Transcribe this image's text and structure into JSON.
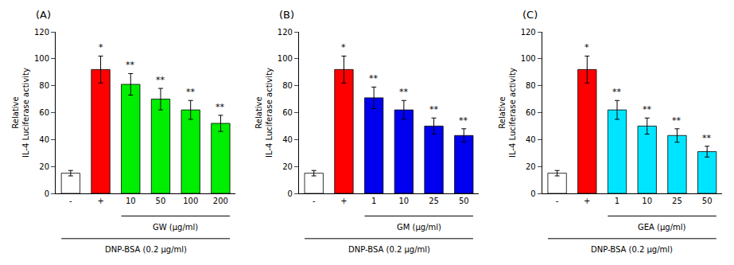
{
  "chart_data": [
    {
      "type": "bar",
      "title": "(A)",
      "categories": [
        "-",
        "+",
        "10",
        "50",
        "100",
        "200"
      ],
      "values": [
        15,
        92,
        81,
        70,
        62,
        52
      ],
      "errors": [
        2,
        10,
        8,
        8,
        7,
        6
      ],
      "colors": [
        "#ffffff",
        "#ff0000",
        "#00ee00",
        "#00ee00",
        "#00ee00",
        "#00ee00"
      ],
      "significance": [
        null,
        "*",
        "**",
        "**",
        "**",
        "**"
      ],
      "brackets": [
        {
          "text": "GW (μg/ml)",
          "from": "10",
          "to": "200"
        },
        {
          "text": "DNP-BSA (0.2 μg/ml)",
          "from": "-",
          "to": "200"
        }
      ],
      "ylabel": "Relative\nIL-4 Luciferase activity",
      "ylim": [
        0,
        120
      ],
      "yticks": [
        0,
        20,
        40,
        60,
        80,
        100,
        120
      ],
      "grid": false
    },
    {
      "type": "bar",
      "title": "(B)",
      "categories": [
        "-",
        "+",
        "1",
        "10",
        "25",
        "50"
      ],
      "values": [
        15,
        92,
        71,
        62,
        50,
        43
      ],
      "errors": [
        2,
        10,
        8,
        7,
        6,
        5
      ],
      "colors": [
        "#ffffff",
        "#ff0000",
        "#0000ee",
        "#0000ee",
        "#0000ee",
        "#0000ee"
      ],
      "significance": [
        null,
        "*",
        "**",
        "**",
        "**",
        "**"
      ],
      "brackets": [
        {
          "text": "GM (μg/ml)",
          "from": "1",
          "to": "50"
        },
        {
          "text": "DNP-BSA (0.2 μg/ml)",
          "from": "-",
          "to": "50"
        }
      ],
      "ylabel": "Relative\nIL-4 Luciferase activity",
      "ylim": [
        0,
        120
      ],
      "yticks": [
        0,
        20,
        40,
        60,
        80,
        100,
        120
      ],
      "grid": false
    },
    {
      "type": "bar",
      "title": "(C)",
      "categories": [
        "-",
        "+",
        "1",
        "10",
        "25",
        "50"
      ],
      "values": [
        15,
        92,
        62,
        50,
        43,
        31
      ],
      "errors": [
        2,
        10,
        7,
        6,
        5,
        4
      ],
      "colors": [
        "#ffffff",
        "#ff0000",
        "#00e5ff",
        "#00e5ff",
        "#00e5ff",
        "#00e5ff"
      ],
      "significance": [
        null,
        "*",
        "**",
        "**",
        "**",
        "**"
      ],
      "brackets": [
        {
          "text": "GEA (μg/ml)",
          "from": "1",
          "to": "50"
        },
        {
          "text": "DNP-BSA (0.2 μg/ml)",
          "from": "-",
          "to": "50"
        }
      ],
      "ylabel": "Relative\nIL-4 Luciferase activity",
      "ylim": [
        0,
        120
      ],
      "yticks": [
        0,
        20,
        40,
        60,
        80,
        100,
        120
      ],
      "grid": false
    }
  ]
}
